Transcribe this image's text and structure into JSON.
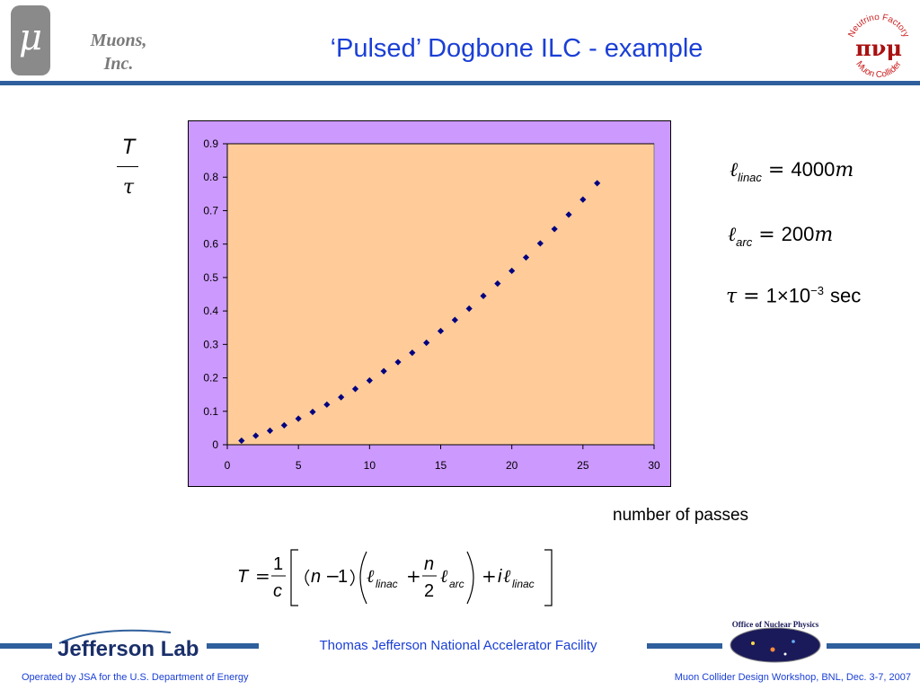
{
  "header": {
    "logo_symbol": "μ",
    "company_line1": "Muons,",
    "company_line2": "Inc.",
    "title": "‘Pulsed’ Dogbone ILC - example",
    "right_logo": {
      "text_top": "Neutrino Factory",
      "text_bottom": "Muon Collider",
      "symbols": "πνμ"
    }
  },
  "y_fraction": {
    "numerator": "T",
    "denominator": "τ"
  },
  "chart_data": {
    "type": "scatter",
    "x": [
      1,
      2,
      3,
      4,
      5,
      6,
      7,
      8,
      9,
      10,
      11,
      12,
      13,
      14,
      15,
      16,
      17,
      18,
      19,
      20,
      21,
      22,
      23,
      24,
      25,
      26
    ],
    "y": [
      0.012,
      0.027,
      0.042,
      0.058,
      0.078,
      0.098,
      0.12,
      0.142,
      0.167,
      0.192,
      0.22,
      0.247,
      0.275,
      0.305,
      0.34,
      0.373,
      0.407,
      0.445,
      0.482,
      0.52,
      0.56,
      0.602,
      0.645,
      0.688,
      0.733,
      0.782
    ],
    "xlim": [
      0,
      30
    ],
    "ylim": [
      0,
      0.9
    ],
    "x_ticks": [
      "0",
      "5",
      "10",
      "15",
      "20",
      "25",
      "30"
    ],
    "y_ticks": [
      "0",
      "0.1",
      "0.2",
      "0.3",
      "0.4",
      "0.5",
      "0.6",
      "0.7",
      "0.8",
      "0.9"
    ],
    "grid": "horizontal line at top only",
    "marker": "diamond",
    "marker_color": "#000080",
    "plot_bg": "#ffcc99",
    "frame_bg": "#cc99ff",
    "xlabel": "number of passes"
  },
  "params": {
    "linac": {
      "symbol": "ℓ",
      "sub": "linac",
      "eq": "=",
      "value": "4000",
      "unit": "m"
    },
    "arc": {
      "symbol": "ℓ",
      "sub": "arc",
      "eq": "=",
      "value": "200",
      "unit": "m"
    },
    "tau": {
      "symbol": "τ",
      "eq": "=",
      "mant": "1×10",
      "exp": "−3",
      "unit": "sec"
    }
  },
  "formula": {
    "lhs": "T",
    "eq": "=",
    "one": "1",
    "c": "c",
    "n": "n",
    "minus": "−",
    "one2": "1",
    "ell": "ℓ",
    "linac": "linac",
    "plus": "+",
    "n2": "n",
    "two": "2",
    "arc": "arc",
    "plus2": "+",
    "i": "i",
    "linac2": "linac"
  },
  "footer": {
    "lab": "Jefferson Lab",
    "facility": "Thomas Jefferson National Accelerator Facility",
    "onp": "Office of Nuclear Physics",
    "left": "Operated by JSA for the U.S. Department of Energy",
    "right": "Muon Collider Design Workshop, BNL, Dec. 3-7, 2007"
  },
  "colors": {
    "accent_blue": "#1a3fd6",
    "band_blue": "#2f5f9c"
  }
}
